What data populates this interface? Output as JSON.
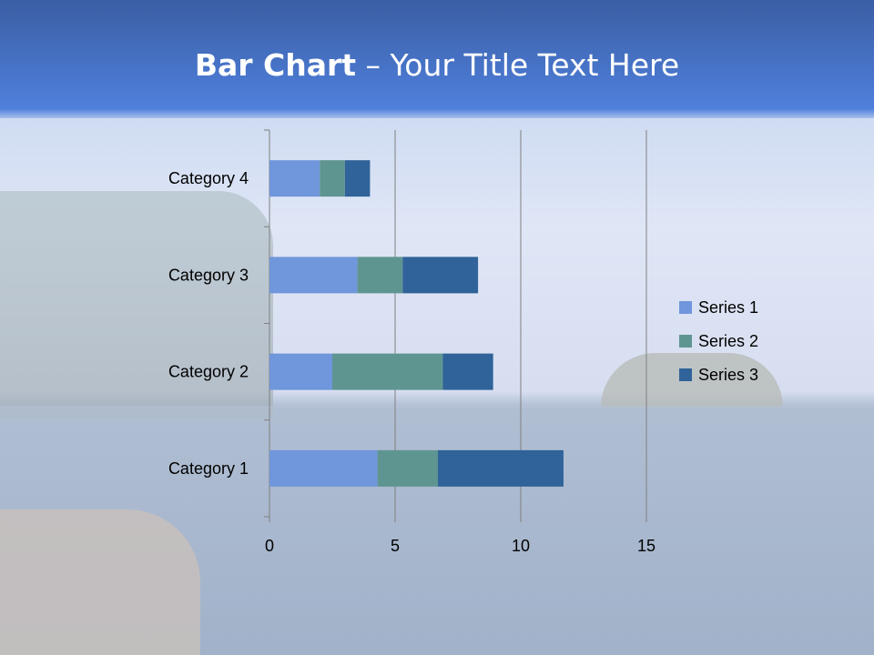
{
  "slide": {
    "title_bold": "Bar Chart",
    "title_rest": " – Your Title Text Here"
  },
  "chart_data": {
    "type": "bar",
    "orientation": "horizontal",
    "stacked": true,
    "categories": [
      "Category 1",
      "Category 2",
      "Category 3",
      "Category 4"
    ],
    "series": [
      {
        "name": "Series 1",
        "values": [
          4.3,
          2.5,
          3.5,
          2
        ],
        "color": "#7096dc"
      },
      {
        "name": "Series 2",
        "values": [
          2.4,
          4.4,
          1.8,
          1
        ],
        "color": "#5f9591"
      },
      {
        "name": "Series 3",
        "values": [
          5,
          2,
          3,
          1
        ],
        "color": "#2f6399"
      }
    ],
    "xlim": [
      0,
      15
    ],
    "x_ticks": [
      "0",
      "5",
      "10",
      "15"
    ],
    "grid": true,
    "legend": "right"
  }
}
